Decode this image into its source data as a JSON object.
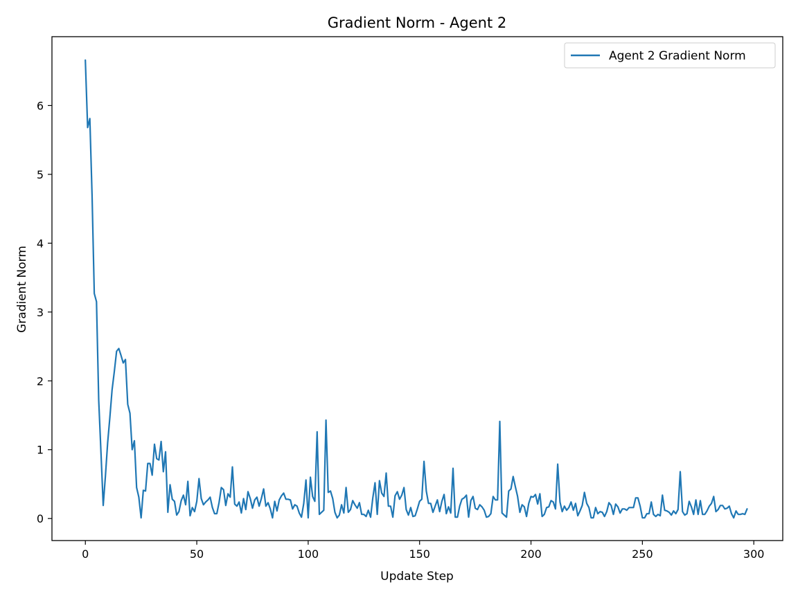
{
  "chart_data": {
    "type": "line",
    "title": "Gradient Norm - Agent 2",
    "xlabel": "Update Step",
    "ylabel": "Gradient Norm",
    "xlim": [
      -15,
      313
    ],
    "ylim": [
      -0.32,
      7.0
    ],
    "xticks": [
      0,
      50,
      100,
      150,
      200,
      250,
      300
    ],
    "yticks": [
      0,
      1,
      2,
      3,
      4,
      5,
      6
    ],
    "grid": false,
    "legend_position": "top-right",
    "series": [
      {
        "name": "Agent 2 Gradient Norm",
        "color": "#1f77b4",
        "x": [
          0,
          1,
          2,
          3,
          4,
          5,
          6,
          7,
          8,
          9,
          10,
          11,
          12,
          13,
          14,
          15,
          16,
          17,
          18,
          19,
          20,
          21,
          22,
          23,
          24,
          25,
          26,
          27,
          28,
          29,
          30,
          31,
          32,
          33,
          34,
          35,
          36,
          37,
          38,
          39,
          40,
          41,
          42,
          43,
          44,
          45,
          46,
          47,
          48,
          49,
          50,
          51,
          52,
          53,
          54,
          55,
          56,
          57,
          58,
          59,
          60,
          61,
          62,
          63,
          64,
          65,
          66,
          67,
          68,
          69,
          70,
          71,
          72,
          73,
          74,
          75,
          76,
          77,
          78,
          79,
          80,
          81,
          82,
          83,
          84,
          85,
          86,
          87,
          88,
          89,
          90,
          91,
          92,
          93,
          94,
          95,
          96,
          97,
          98,
          99,
          100,
          101,
          102,
          103,
          104,
          105,
          106,
          107,
          108,
          109,
          110,
          111,
          112,
          113,
          114,
          115,
          116,
          117,
          118,
          119,
          120,
          121,
          122,
          123,
          124,
          125,
          126,
          127,
          128,
          129,
          130,
          131,
          132,
          133,
          134,
          135,
          136,
          137,
          138,
          139,
          140,
          141,
          142,
          143,
          144,
          145,
          146,
          147,
          148,
          149,
          150,
          151,
          152,
          153,
          154,
          155,
          156,
          157,
          158,
          159,
          160,
          161,
          162,
          163,
          164,
          165,
          166,
          167,
          168,
          169,
          170,
          171,
          172,
          173,
          174,
          175,
          176,
          177,
          178,
          179,
          180,
          181,
          182,
          183,
          184,
          185,
          186,
          187,
          188,
          189,
          190,
          191,
          192,
          193,
          194,
          195,
          196,
          197,
          198,
          199,
          200,
          201,
          202,
          203,
          204,
          205,
          206,
          207,
          208,
          209,
          210,
          211,
          212,
          213,
          214,
          215,
          216,
          217,
          218,
          219,
          220,
          221,
          222,
          223,
          224,
          225,
          226,
          227,
          228,
          229,
          230,
          231,
          232,
          233,
          234,
          235,
          236,
          237,
          238,
          239,
          240,
          241,
          242,
          243,
          244,
          245,
          246,
          247,
          248,
          249,
          250,
          251,
          252,
          253,
          254,
          255,
          256,
          257,
          258,
          259,
          260,
          261,
          262,
          263,
          264,
          265,
          266,
          267,
          268,
          269,
          270,
          271,
          272,
          273,
          274,
          275,
          276,
          277,
          278,
          279,
          280,
          281,
          282,
          283,
          284,
          285,
          286,
          287,
          288,
          289,
          290,
          291,
          292,
          293,
          294,
          295,
          296,
          297
        ],
        "values": [
          6.66,
          5.68,
          5.81,
          4.7,
          3.27,
          3.15,
          1.72,
          0.95,
          0.19,
          0.62,
          1.1,
          1.47,
          1.87,
          2.14,
          2.43,
          2.47,
          2.37,
          2.26,
          2.31,
          1.66,
          1.53,
          1.0,
          1.13,
          0.45,
          0.31,
          0.01,
          0.41,
          0.4,
          0.8,
          0.8,
          0.63,
          1.08,
          0.87,
          0.85,
          1.12,
          0.68,
          0.97,
          0.09,
          0.49,
          0.28,
          0.25,
          0.05,
          0.1,
          0.26,
          0.34,
          0.2,
          0.54,
          0.04,
          0.16,
          0.1,
          0.25,
          0.58,
          0.29,
          0.2,
          0.24,
          0.27,
          0.31,
          0.16,
          0.07,
          0.07,
          0.23,
          0.45,
          0.42,
          0.19,
          0.36,
          0.31,
          0.75,
          0.21,
          0.18,
          0.24,
          0.08,
          0.29,
          0.13,
          0.39,
          0.29,
          0.15,
          0.27,
          0.31,
          0.18,
          0.29,
          0.43,
          0.18,
          0.23,
          0.14,
          0.01,
          0.25,
          0.11,
          0.27,
          0.33,
          0.37,
          0.28,
          0.28,
          0.27,
          0.14,
          0.2,
          0.18,
          0.08,
          0.02,
          0.22,
          0.56,
          0.01,
          0.6,
          0.32,
          0.25,
          1.26,
          0.06,
          0.09,
          0.12,
          1.43,
          0.38,
          0.4,
          0.29,
          0.09,
          0.01,
          0.05,
          0.2,
          0.08,
          0.45,
          0.09,
          0.13,
          0.26,
          0.2,
          0.15,
          0.23,
          0.06,
          0.06,
          0.03,
          0.12,
          0.02,
          0.3,
          0.52,
          0.06,
          0.55,
          0.37,
          0.32,
          0.66,
          0.18,
          0.18,
          0.02,
          0.33,
          0.39,
          0.28,
          0.34,
          0.45,
          0.13,
          0.05,
          0.16,
          0.03,
          0.04,
          0.14,
          0.25,
          0.28,
          0.83,
          0.4,
          0.22,
          0.22,
          0.09,
          0.18,
          0.27,
          0.1,
          0.25,
          0.35,
          0.07,
          0.17,
          0.08,
          0.73,
          0.02,
          0.02,
          0.18,
          0.28,
          0.3,
          0.34,
          0.02,
          0.26,
          0.32,
          0.15,
          0.13,
          0.2,
          0.17,
          0.12,
          0.02,
          0.03,
          0.07,
          0.32,
          0.27,
          0.27,
          1.41,
          0.08,
          0.05,
          0.02,
          0.4,
          0.43,
          0.61,
          0.46,
          0.32,
          0.09,
          0.2,
          0.17,
          0.03,
          0.22,
          0.32,
          0.31,
          0.35,
          0.21,
          0.36,
          0.03,
          0.06,
          0.16,
          0.17,
          0.26,
          0.24,
          0.14,
          0.79,
          0.24,
          0.1,
          0.18,
          0.12,
          0.16,
          0.24,
          0.12,
          0.22,
          0.04,
          0.11,
          0.19,
          0.38,
          0.22,
          0.16,
          0.01,
          0.01,
          0.16,
          0.07,
          0.1,
          0.09,
          0.03,
          0.1,
          0.23,
          0.19,
          0.06,
          0.21,
          0.17,
          0.08,
          0.14,
          0.14,
          0.12,
          0.16,
          0.16,
          0.16,
          0.3,
          0.3,
          0.18,
          0.01,
          0.01,
          0.07,
          0.07,
          0.24,
          0.06,
          0.03,
          0.06,
          0.04,
          0.34,
          0.12,
          0.11,
          0.09,
          0.05,
          0.11,
          0.07,
          0.13,
          0.68,
          0.1,
          0.05,
          0.07,
          0.25,
          0.17,
          0.06,
          0.27,
          0.06,
          0.26,
          0.06,
          0.06,
          0.11,
          0.18,
          0.22,
          0.32,
          0.1,
          0.13,
          0.19,
          0.19,
          0.14,
          0.15,
          0.18,
          0.07,
          0.01,
          0.11,
          0.06,
          0.06,
          0.07,
          0.06,
          0.14
        ]
      }
    ]
  }
}
